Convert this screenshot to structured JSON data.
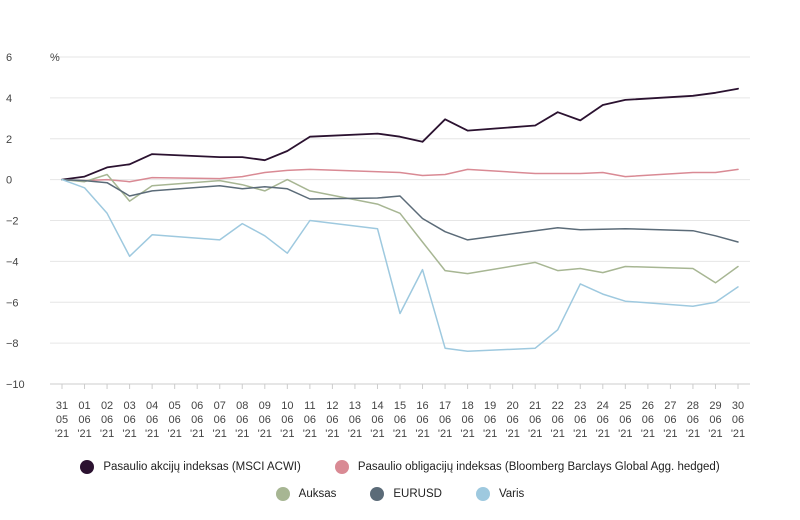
{
  "chart_data": {
    "type": "line",
    "y_unit": "%",
    "ylim": [
      -10,
      6
    ],
    "yticks": [
      6,
      4,
      2,
      0,
      -2,
      -4,
      -6,
      -8,
      -10
    ],
    "grid": "horizontal",
    "legend_position": "bottom",
    "x_labels": [
      [
        "31",
        "05",
        "'21"
      ],
      [
        "01",
        "06",
        "'21"
      ],
      [
        "02",
        "06",
        "'21"
      ],
      [
        "03",
        "06",
        "'21"
      ],
      [
        "04",
        "06",
        "'21"
      ],
      [
        "05",
        "06",
        "'21"
      ],
      [
        "06",
        "06",
        "'21"
      ],
      [
        "07",
        "06",
        "'21"
      ],
      [
        "08",
        "06",
        "'21"
      ],
      [
        "09",
        "06",
        "'21"
      ],
      [
        "10",
        "06",
        "'21"
      ],
      [
        "11",
        "06",
        "'21"
      ],
      [
        "12",
        "06",
        "'21"
      ],
      [
        "13",
        "06",
        "'21"
      ],
      [
        "14",
        "06",
        "'21"
      ],
      [
        "15",
        "06",
        "'21"
      ],
      [
        "16",
        "06",
        "'21"
      ],
      [
        "17",
        "06",
        "'21"
      ],
      [
        "18",
        "06",
        "'21"
      ],
      [
        "19",
        "06",
        "'21"
      ],
      [
        "20",
        "06",
        "'21"
      ],
      [
        "21",
        "06",
        "'21"
      ],
      [
        "22",
        "06",
        "'21"
      ],
      [
        "23",
        "06",
        "'21"
      ],
      [
        "24",
        "06",
        "'21"
      ],
      [
        "25",
        "06",
        "'21"
      ],
      [
        "26",
        "06",
        "'21"
      ],
      [
        "27",
        "06",
        "'21"
      ],
      [
        "28",
        "06",
        "'21"
      ],
      [
        "29",
        "06",
        "'21"
      ],
      [
        "30",
        "06",
        "'21"
      ]
    ],
    "series": [
      {
        "name": "Pasaulio akcijų indeksas (MSCI ACWI)",
        "color": "#2b1230",
        "points": [
          [
            0,
            0
          ],
          [
            1,
            0.15
          ],
          [
            2,
            0.6
          ],
          [
            3,
            0.75
          ],
          [
            4,
            1.25
          ],
          [
            7,
            1.1
          ],
          [
            8,
            1.1
          ],
          [
            9,
            0.95
          ],
          [
            10,
            1.4
          ],
          [
            11,
            2.1
          ],
          [
            14,
            2.25
          ],
          [
            15,
            2.1
          ],
          [
            16,
            1.85
          ],
          [
            17,
            2.95
          ],
          [
            18,
            2.4
          ],
          [
            21,
            2.65
          ],
          [
            22,
            3.3
          ],
          [
            23,
            2.9
          ],
          [
            24,
            3.65
          ],
          [
            25,
            3.9
          ],
          [
            28,
            4.1
          ],
          [
            29,
            4.25
          ],
          [
            30,
            4.45
          ]
        ]
      },
      {
        "name": "Pasaulio obligacijų indeksas (Bloomberg Barclays Global Agg. hedged)",
        "color": "#d98a94",
        "points": [
          [
            0,
            0
          ],
          [
            1,
            -0.05
          ],
          [
            2,
            0
          ],
          [
            3,
            -0.1
          ],
          [
            4,
            0.1
          ],
          [
            7,
            0.05
          ],
          [
            8,
            0.15
          ],
          [
            9,
            0.35
          ],
          [
            10,
            0.45
          ],
          [
            11,
            0.5
          ],
          [
            15,
            0.35
          ],
          [
            16,
            0.2
          ],
          [
            17,
            0.25
          ],
          [
            18,
            0.5
          ],
          [
            21,
            0.3
          ],
          [
            23,
            0.3
          ],
          [
            24,
            0.35
          ],
          [
            25,
            0.15
          ],
          [
            28,
            0.35
          ],
          [
            29,
            0.35
          ],
          [
            30,
            0.5
          ]
        ]
      },
      {
        "name": "Auksas",
        "color": "#a7b693",
        "points": [
          [
            0,
            0
          ],
          [
            1,
            -0.1
          ],
          [
            2,
            0.25
          ],
          [
            3,
            -1.05
          ],
          [
            4,
            -0.3
          ],
          [
            7,
            -0.05
          ],
          [
            8,
            -0.25
          ],
          [
            9,
            -0.55
          ],
          [
            10,
            0
          ],
          [
            11,
            -0.55
          ],
          [
            14,
            -1.2
          ],
          [
            15,
            -1.65
          ],
          [
            16,
            -3.05
          ],
          [
            17,
            -4.45
          ],
          [
            18,
            -4.6
          ],
          [
            21,
            -4.05
          ],
          [
            22,
            -4.45
          ],
          [
            23,
            -4.35
          ],
          [
            24,
            -4.55
          ],
          [
            25,
            -4.25
          ],
          [
            28,
            -4.35
          ],
          [
            29,
            -5.05
          ],
          [
            30,
            -4.25
          ]
        ]
      },
      {
        "name": "EURUSD",
        "color": "#5b6b78",
        "points": [
          [
            0,
            0
          ],
          [
            1,
            -0.05
          ],
          [
            2,
            -0.15
          ],
          [
            3,
            -0.8
          ],
          [
            4,
            -0.55
          ],
          [
            7,
            -0.3
          ],
          [
            8,
            -0.45
          ],
          [
            9,
            -0.35
          ],
          [
            10,
            -0.45
          ],
          [
            11,
            -0.95
          ],
          [
            14,
            -0.9
          ],
          [
            15,
            -0.8
          ],
          [
            16,
            -1.9
          ],
          [
            17,
            -2.55
          ],
          [
            18,
            -2.95
          ],
          [
            21,
            -2.5
          ],
          [
            22,
            -2.35
          ],
          [
            23,
            -2.45
          ],
          [
            25,
            -2.4
          ],
          [
            28,
            -2.5
          ],
          [
            29,
            -2.75
          ],
          [
            30,
            -3.05
          ]
        ]
      },
      {
        "name": "Varis",
        "color": "#9ec9df",
        "points": [
          [
            0,
            0
          ],
          [
            1,
            -0.4
          ],
          [
            2,
            -1.65
          ],
          [
            3,
            -3.75
          ],
          [
            4,
            -2.7
          ],
          [
            7,
            -2.95
          ],
          [
            8,
            -2.15
          ],
          [
            9,
            -2.75
          ],
          [
            10,
            -3.6
          ],
          [
            11,
            -2
          ],
          [
            14,
            -2.4
          ],
          [
            15,
            -6.55
          ],
          [
            16,
            -4.4
          ],
          [
            17,
            -8.25
          ],
          [
            18,
            -8.4
          ],
          [
            21,
            -8.25
          ],
          [
            22,
            -7.35
          ],
          [
            23,
            -5.1
          ],
          [
            24,
            -5.6
          ],
          [
            25,
            -5.95
          ],
          [
            28,
            -6.2
          ],
          [
            29,
            -6
          ],
          [
            30,
            -5.25
          ]
        ]
      }
    ]
  }
}
